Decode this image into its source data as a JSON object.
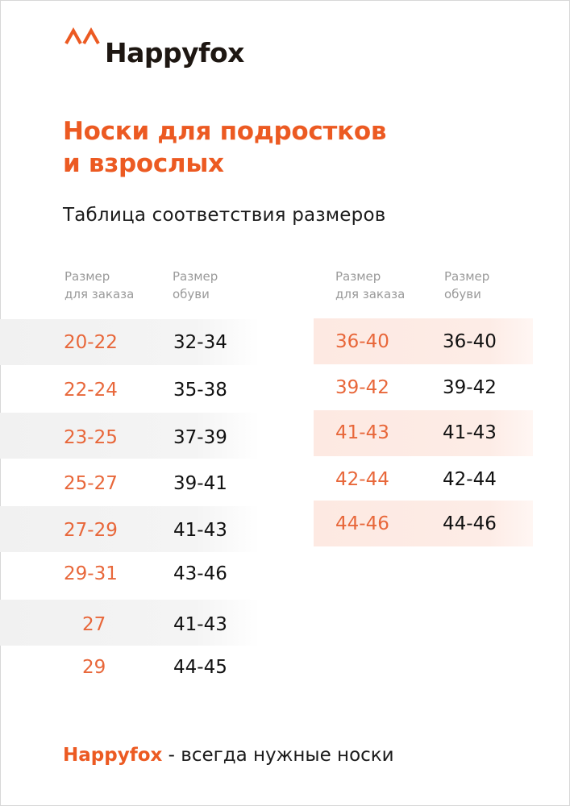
{
  "brand": {
    "logo_text": "Happyfox",
    "colors": {
      "accent": "#ec5a22",
      "ink": "#1e1712",
      "band_left": "#f2f2f2",
      "band_right": "#fdeae3"
    }
  },
  "title": {
    "line1": "Носки для подростков",
    "line2": "и взрослых"
  },
  "subtitle": "Таблица соответствия размеров",
  "table_left": {
    "headers": {
      "order_line1": "Размер",
      "order_line2": "для заказа",
      "shoe_line1": "Размер",
      "shoe_line2": "обуви"
    },
    "rows": [
      {
        "order": "20-22",
        "shoe": "32-34"
      },
      {
        "order": "22-24",
        "shoe": "35-38"
      },
      {
        "order": "23-25",
        "shoe": "37-39"
      },
      {
        "order": "25-27",
        "shoe": "39-41"
      },
      {
        "order": "27-29",
        "shoe": "41-43"
      },
      {
        "order": "29-31",
        "shoe": "43-46"
      },
      {
        "order": "27",
        "shoe": "41-43"
      },
      {
        "order": "29",
        "shoe": "44-45"
      }
    ]
  },
  "table_right": {
    "headers": {
      "order_line1": "Размер",
      "order_line2": "для заказа",
      "shoe_line1": "Размер",
      "shoe_line2": "обуви"
    },
    "rows": [
      {
        "order": "36-40",
        "shoe": "36-40"
      },
      {
        "order": "39-42",
        "shoe": "39-42"
      },
      {
        "order": "41-43",
        "shoe": "41-43"
      },
      {
        "order": "42-44",
        "shoe": "42-44"
      },
      {
        "order": "44-46",
        "shoe": "44-46"
      }
    ]
  },
  "footer": {
    "brand": "Happyfox",
    "tagline": " - всегда нужные носки"
  }
}
